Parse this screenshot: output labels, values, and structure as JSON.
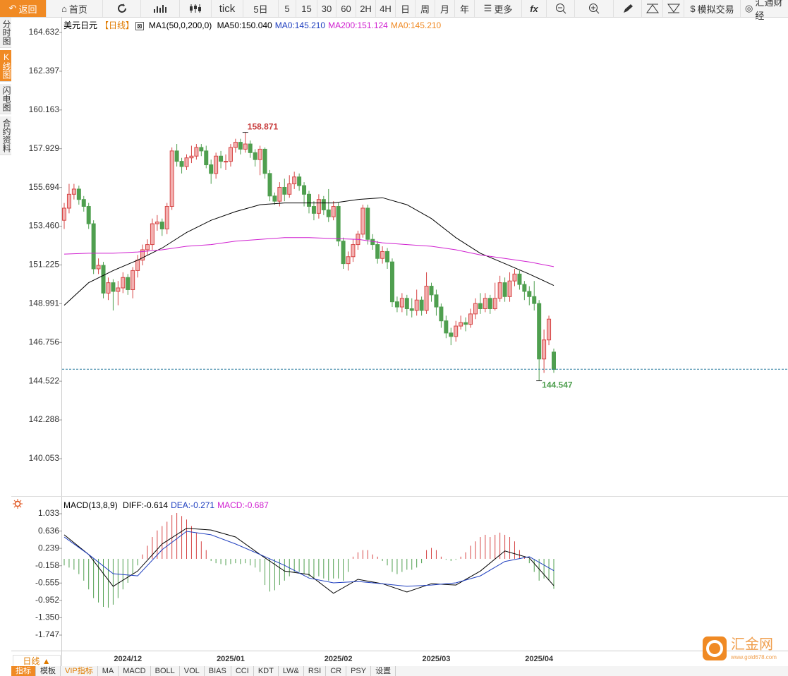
{
  "toolbar": {
    "back": "返回",
    "home": "首页",
    "tick": "tick",
    "periods": [
      "5日",
      "5",
      "15",
      "30",
      "60",
      "2H",
      "4H",
      "日",
      "周",
      "月",
      "年"
    ],
    "more": "更多",
    "fx": "fx",
    "sim": "模拟交易",
    "brand": "汇通财经"
  },
  "sidebar": [
    "分时图",
    "K线图",
    "闪电图",
    "合约资料"
  ],
  "chart_data": [
    {
      "type": "candlestick",
      "title": "美元日元",
      "period": "【日线】",
      "indicator": "MA1(50,0,200,0)",
      "legend": [
        {
          "text": "MA50:150.040",
          "color": "#000000"
        },
        {
          "text": "MA0:145.210",
          "color": "#1f3fbf"
        },
        {
          "text": "MA200:151.124",
          "color": "#d020d0"
        },
        {
          "text": "MA0:145.210",
          "color": "#f08a24"
        }
      ],
      "categories": [
        null,
        null,
        null,
        null,
        null,
        null,
        null,
        null,
        null,
        null,
        null,
        null,
        null,
        "2024/12",
        null,
        null,
        null,
        null,
        null,
        null,
        null,
        null,
        null,
        null,
        null,
        null,
        null,
        null,
        null,
        null,
        null,
        null,
        null,
        null,
        "2025/01",
        null,
        null,
        null,
        null,
        null,
        null,
        null,
        null,
        null,
        null,
        null,
        null,
        null,
        null,
        null,
        null,
        null,
        null,
        null,
        null,
        null,
        "2025/02",
        null,
        null,
        null,
        null,
        null,
        null,
        null,
        null,
        null,
        null,
        null,
        null,
        null,
        null,
        null,
        null,
        null,
        null,
        null,
        "2025/03",
        null,
        null,
        null,
        null,
        null,
        null,
        null,
        null,
        null,
        null,
        null,
        null,
        null,
        null,
        null,
        null,
        null,
        null,
        null,
        null,
        "2025/04",
        null,
        null,
        null
      ],
      "open": [
        153.8,
        154.5,
        155.3,
        155.6,
        155.0,
        154.6,
        153.6,
        151.0,
        151.2,
        149.6,
        150.2,
        149.7,
        149.9,
        150.5,
        149.8,
        150.9,
        151.5,
        152.1,
        152.4,
        153.6,
        153.7,
        153.3,
        154.6,
        157.8,
        157.2,
        156.9,
        157.4,
        157.5,
        158.0,
        157.8,
        157.0,
        156.5,
        157.5,
        157.2,
        157.2,
        158.0,
        158.3,
        157.9,
        158.2,
        157.7,
        157.3,
        157.9,
        156.5,
        155.2,
        154.9,
        155.7,
        155.3,
        155.9,
        156.3,
        155.8,
        155.3,
        154.6,
        154.2,
        155.0,
        154.4,
        154.0,
        154.6,
        152.6,
        151.3,
        151.7,
        152.4,
        153.0,
        154.5,
        152.7,
        152.4,
        151.6,
        152.0,
        151.4,
        149.1,
        148.8,
        149.3,
        148.7,
        148.6,
        149.2,
        148.6,
        150.0,
        149.5,
        148.8,
        148.0,
        147.3,
        147.1,
        147.7,
        147.9,
        147.8,
        148.4,
        149.0,
        148.7,
        149.3,
        148.7,
        149.3,
        150.2,
        149.4,
        150.3,
        150.7,
        150.1,
        149.7,
        149.4,
        149.0,
        145.8,
        146.9,
        146.2
      ],
      "high": [
        154.8,
        155.9,
        155.9,
        155.8,
        155.2,
        154.8,
        153.8,
        151.6,
        151.4,
        150.5,
        150.4,
        150.3,
        150.8,
        150.7,
        151.1,
        151.8,
        152.4,
        152.7,
        153.9,
        154.1,
        153.9,
        154.8,
        158.0,
        158.2,
        157.4,
        157.6,
        158.1,
        158.2,
        158.2,
        158.1,
        157.3,
        157.7,
        157.8,
        157.6,
        158.2,
        158.5,
        158.5,
        158.871,
        158.4,
        157.9,
        158.1,
        158.0,
        156.7,
        155.4,
        156.0,
        156.2,
        156.4,
        156.6,
        156.5,
        156.0,
        155.5,
        154.9,
        155.3,
        155.2,
        155.6,
        154.9,
        154.8,
        152.8,
        152.0,
        152.7,
        153.2,
        154.7,
        154.7,
        153.0,
        152.6,
        152.3,
        152.2,
        151.6,
        149.4,
        149.6,
        149.5,
        149.3,
        149.8,
        149.4,
        150.8,
        150.2,
        149.8,
        149.0,
        148.3,
        147.6,
        148.0,
        148.3,
        148.2,
        148.7,
        149.3,
        149.6,
        149.6,
        149.5,
        150.2,
        150.6,
        150.5,
        150.8,
        151.0,
        150.9,
        150.3,
        150.0,
        150.3,
        149.2,
        147.5,
        148.3,
        146.4
      ],
      "low": [
        153.3,
        154.2,
        155.0,
        154.7,
        154.3,
        153.3,
        150.7,
        150.7,
        149.3,
        149.2,
        148.6,
        148.9,
        149.6,
        149.5,
        149.3,
        150.5,
        151.2,
        151.8,
        152.1,
        153.2,
        152.9,
        153.0,
        154.4,
        156.9,
        156.5,
        156.7,
        157.1,
        157.3,
        157.5,
        156.8,
        155.9,
        156.2,
        156.8,
        156.7,
        156.9,
        157.7,
        157.6,
        157.7,
        157.4,
        156.9,
        156.4,
        156.2,
        154.9,
        154.7,
        154.6,
        154.9,
        155.1,
        155.6,
        155.5,
        154.6,
        154.2,
        153.8,
        153.9,
        154.1,
        153.7,
        153.8,
        152.3,
        151.0,
        150.9,
        151.4,
        152.1,
        152.8,
        152.4,
        152.1,
        151.3,
        151.3,
        151.0,
        148.8,
        148.5,
        148.5,
        148.3,
        148.2,
        148.3,
        148.3,
        148.4,
        149.1,
        148.3,
        147.6,
        147.0,
        146.6,
        146.8,
        147.5,
        147.4,
        147.6,
        148.1,
        148.4,
        148.5,
        148.4,
        148.6,
        149.1,
        149.1,
        149.1,
        150.0,
        149.8,
        149.2,
        148.9,
        148.6,
        144.547,
        145.0,
        146.6,
        145.0
      ],
      "close": [
        154.5,
        155.3,
        155.6,
        155.0,
        154.6,
        153.6,
        151.0,
        151.2,
        149.6,
        150.2,
        149.7,
        149.9,
        150.5,
        149.8,
        150.9,
        151.5,
        152.1,
        152.4,
        153.6,
        153.7,
        153.3,
        154.6,
        157.8,
        157.2,
        156.9,
        157.4,
        157.5,
        158.0,
        157.8,
        157.0,
        156.5,
        157.5,
        157.2,
        157.2,
        158.0,
        158.3,
        157.9,
        158.2,
        157.7,
        157.3,
        157.9,
        156.5,
        155.2,
        154.9,
        155.7,
        155.3,
        155.9,
        156.3,
        155.8,
        155.3,
        154.6,
        154.2,
        155.0,
        154.4,
        154.0,
        154.6,
        152.6,
        151.3,
        151.7,
        152.4,
        153.0,
        154.5,
        152.7,
        152.4,
        151.6,
        152.0,
        151.4,
        149.1,
        148.8,
        149.3,
        148.7,
        148.6,
        149.2,
        148.6,
        150.0,
        149.5,
        148.8,
        148.0,
        147.3,
        147.1,
        147.7,
        147.9,
        147.8,
        148.4,
        149.0,
        148.7,
        149.3,
        148.7,
        149.3,
        150.2,
        149.4,
        150.3,
        150.7,
        150.1,
        149.7,
        149.4,
        149.0,
        145.8,
        146.9,
        148.1,
        145.2
      ],
      "up_color": "#d64545",
      "down_color": "#4f9f4f",
      "series": [
        {
          "name": "MA50",
          "color": "#000000",
          "x": [
            0,
            5,
            10,
            15,
            20,
            25,
            30,
            35,
            40,
            45,
            50,
            55,
            60,
            65,
            70,
            75,
            80,
            85,
            90,
            95,
            100
          ],
          "values": [
            148.9,
            150.2,
            150.9,
            151.5,
            152.2,
            153.1,
            153.8,
            154.3,
            154.7,
            154.8,
            154.8,
            154.8,
            155.0,
            155.1,
            154.7,
            153.9,
            152.8,
            151.9,
            151.3,
            150.7,
            150.04
          ]
        },
        {
          "name": "MA200",
          "color": "#d020d0",
          "x": [
            0,
            5,
            10,
            15,
            20,
            25,
            30,
            35,
            40,
            45,
            50,
            55,
            60,
            65,
            70,
            75,
            80,
            85,
            90,
            95,
            100
          ],
          "values": [
            151.85,
            151.9,
            151.9,
            151.97,
            152.1,
            152.3,
            152.4,
            152.6,
            152.7,
            152.8,
            152.8,
            152.75,
            152.7,
            152.5,
            152.4,
            152.3,
            152.1,
            151.8,
            151.6,
            151.4,
            151.124
          ]
        }
      ],
      "price_line": 145.21,
      "price_line_color": "#2f7fa0",
      "ylim": [
        138.018,
        165.527
      ],
      "yticks": [
        164.632,
        162.397,
        160.163,
        157.929,
        155.694,
        {
          "value": 153.46,
          "label": "153.460"
        },
        151.225,
        148.991,
        146.756,
        144.522,
        142.288,
        140.053
      ]
    },
    {
      "type": "macd",
      "title": "MACD(13,8,9)",
      "legend": [
        {
          "text": "DIFF:-0.614",
          "color": "#000000"
        },
        {
          "text": "DEA:-0.271",
          "color": "#1f3fbf"
        },
        {
          "text": "MACD:-0.687",
          "color": "#d020d0"
        }
      ],
      "histogram": [
        -0.15,
        -0.2,
        -0.25,
        -0.35,
        -0.5,
        -0.7,
        -0.9,
        -1.0,
        -1.1,
        -1.12,
        -1.05,
        -0.9,
        -0.7,
        -0.55,
        -0.35,
        -0.15,
        0.1,
        0.3,
        0.5,
        0.65,
        0.75,
        0.85,
        1.0,
        1.05,
        0.98,
        0.9,
        0.75,
        0.6,
        0.4,
        0.2,
        -0.05,
        -0.1,
        -0.12,
        -0.15,
        -0.12,
        -0.1,
        -0.12,
        -0.1,
        -0.15,
        -0.2,
        -0.3,
        -0.6,
        -0.75,
        -0.72,
        -0.6,
        -0.5,
        -0.4,
        -0.3,
        -0.3,
        -0.35,
        -0.4,
        -0.45,
        -0.4,
        -0.45,
        -0.5,
        -0.45,
        -0.45,
        -0.5,
        -0.3,
        0.05,
        0.15,
        0.2,
        0.2,
        0.1,
        0.05,
        -0.05,
        -0.15,
        -0.3,
        -0.35,
        -0.3,
        -0.25,
        -0.25,
        -0.2,
        -0.1,
        0.2,
        0.25,
        0.2,
        0.05,
        -0.02,
        -0.05,
        -0.02,
        0.05,
        0.15,
        0.3,
        0.4,
        0.5,
        0.55,
        0.5,
        0.55,
        0.6,
        0.55,
        0.5,
        0.4,
        0.2,
        0.05,
        -0.1,
        -0.3,
        -0.5,
        -0.45,
        -0.5,
        -0.687
      ],
      "up_color": "#d64545",
      "down_color": "#4f9f4f",
      "series": [
        {
          "name": "DIFF",
          "color": "#000000",
          "x": [
            0,
            5,
            10,
            15,
            20,
            25,
            30,
            35,
            40,
            45,
            50,
            55,
            60,
            65,
            70,
            75,
            80,
            85,
            90,
            95,
            100
          ],
          "values": [
            0.55,
            0.1,
            -0.63,
            -0.28,
            0.34,
            0.7,
            0.66,
            0.5,
            0.1,
            -0.28,
            -0.36,
            -0.79,
            -0.47,
            -0.57,
            -0.76,
            -0.57,
            -0.6,
            -0.28,
            0.18,
            0.02,
            -0.614
          ]
        },
        {
          "name": "DEA",
          "color": "#1f3fbf",
          "x": [
            0,
            5,
            10,
            15,
            20,
            25,
            30,
            35,
            40,
            45,
            50,
            55,
            60,
            65,
            70,
            75,
            80,
            85,
            90,
            95,
            100
          ],
          "values": [
            0.5,
            0.1,
            -0.34,
            -0.39,
            0.21,
            0.63,
            0.55,
            0.34,
            0.1,
            -0.15,
            -0.44,
            -0.55,
            -0.52,
            -0.57,
            -0.63,
            -0.6,
            -0.55,
            -0.39,
            -0.06,
            0.05,
            -0.271
          ]
        }
      ],
      "ylim": [
        -2.07,
        1.357
      ],
      "yticks": [
        1.033,
        0.636,
        0.239,
        -0.158,
        -0.555,
        -0.952,
        {
          "value": -1.35,
          "label": "-1.350"
        },
        -1.747
      ]
    }
  ],
  "period_button": "日线 ▲",
  "tabs": [
    "指标",
    "模板",
    "VIP指标",
    "MA",
    "MACD",
    "BOLL",
    "VOL",
    "BIAS",
    "CCI",
    "KDT",
    "LW&",
    "RSI",
    "CR",
    "PSY",
    "设置"
  ],
  "watermark": {
    "name": "汇金网",
    "url": "www.gold678.com"
  }
}
